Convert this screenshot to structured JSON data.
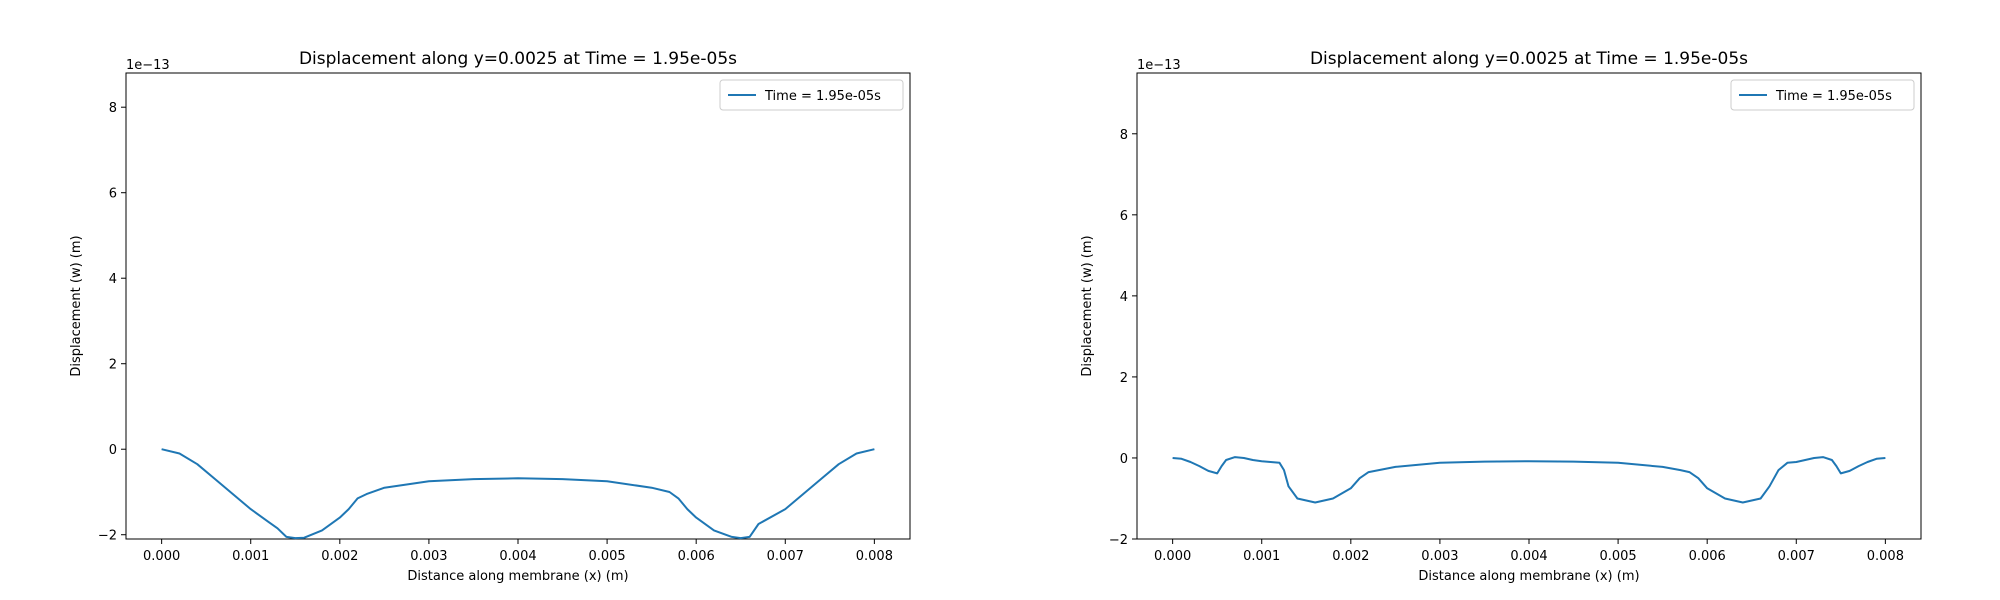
{
  "chart_data": [
    {
      "type": "line",
      "title": "Displacement along y=0.0025 at Time = 1.95e-05s",
      "xlabel": "Distance along membrane (x) (m)",
      "ylabel": "Displacement (w) (m)",
      "y_offset_label": "1e−13",
      "xlim": [
        -0.0004,
        0.0084
      ],
      "ylim": [
        -2.1,
        8.8
      ],
      "xticks": [
        0.0,
        0.001,
        0.002,
        0.003,
        0.004,
        0.005,
        0.006,
        0.007,
        0.008
      ],
      "xtick_labels": [
        "0.000",
        "0.001",
        "0.002",
        "0.003",
        "0.004",
        "0.005",
        "0.006",
        "0.007",
        "0.008"
      ],
      "yticks": [
        -2,
        0,
        2,
        4,
        6,
        8
      ],
      "ytick_labels": [
        "−2",
        "0",
        "2",
        "4",
        "6",
        "8"
      ],
      "legend_position": "top-right",
      "grid": false,
      "series": [
        {
          "name": "Time = 1.95e-05s",
          "color": "#1f77b4",
          "x": [
            0.0,
            0.0002,
            0.0004,
            0.0006,
            0.0008,
            0.001,
            0.0012,
            0.0013,
            0.0014,
            0.0015,
            0.0016,
            0.0018,
            0.002,
            0.0021,
            0.0022,
            0.0023,
            0.0025,
            0.003,
            0.0035,
            0.004,
            0.0045,
            0.005,
            0.0055,
            0.0057,
            0.0058,
            0.0059,
            0.006,
            0.0062,
            0.0064,
            0.0065,
            0.0066,
            0.0067,
            0.007,
            0.0072,
            0.0074,
            0.0076,
            0.0078,
            0.008
          ],
          "values": [
            0.0,
            -0.1,
            -0.35,
            -0.7,
            -1.05,
            -1.4,
            -1.7,
            -1.85,
            -2.05,
            -2.08,
            -2.07,
            -1.9,
            -1.6,
            -1.4,
            -1.15,
            -1.05,
            -0.9,
            -0.75,
            -0.7,
            -0.68,
            -0.7,
            -0.75,
            -0.9,
            -1.0,
            -1.15,
            -1.4,
            -1.6,
            -1.9,
            -2.05,
            -2.08,
            -2.05,
            -1.75,
            -1.4,
            -1.05,
            -0.7,
            -0.35,
            -0.1,
            0.0
          ]
        }
      ]
    },
    {
      "type": "line",
      "title": "Displacement along y=0.0025 at Time = 1.95e-05s",
      "xlabel": "Distance along membrane (x) (m)",
      "ylabel": "Displacement (w) (m)",
      "y_offset_label": "1e−13",
      "xlim": [
        -0.0004,
        0.0084
      ],
      "ylim": [
        -2.0,
        9.5
      ],
      "xticks": [
        0.0,
        0.001,
        0.002,
        0.003,
        0.004,
        0.005,
        0.006,
        0.007,
        0.008
      ],
      "xtick_labels": [
        "0.000",
        "0.001",
        "0.002",
        "0.003",
        "0.004",
        "0.005",
        "0.006",
        "0.007",
        "0.008"
      ],
      "yticks": [
        -2,
        0,
        2,
        4,
        6,
        8
      ],
      "ytick_labels": [
        "−2",
        "0",
        "2",
        "4",
        "6",
        "8"
      ],
      "legend_position": "top-right",
      "grid": false,
      "series": [
        {
          "name": "Time = 1.95e-05s",
          "color": "#1f77b4",
          "x": [
            0.0,
            0.0001,
            0.0002,
            0.0003,
            0.0004,
            0.0005,
            0.00055,
            0.0006,
            0.0007,
            0.0008,
            0.0009,
            0.001,
            0.0011,
            0.0012,
            0.00125,
            0.0013,
            0.0014,
            0.0016,
            0.0018,
            0.002,
            0.0021,
            0.0022,
            0.0025,
            0.003,
            0.0035,
            0.004,
            0.0045,
            0.005,
            0.0055,
            0.0057,
            0.0058,
            0.0059,
            0.006,
            0.0062,
            0.0064,
            0.0066,
            0.0067,
            0.0068,
            0.0069,
            0.007,
            0.0071,
            0.0072,
            0.0073,
            0.0074,
            0.00745,
            0.0075,
            0.0076,
            0.0077,
            0.0078,
            0.0079,
            0.008
          ],
          "values": [
            0.0,
            -0.02,
            -0.1,
            -0.2,
            -0.32,
            -0.38,
            -0.2,
            -0.05,
            0.02,
            0.0,
            -0.05,
            -0.08,
            -0.1,
            -0.12,
            -0.3,
            -0.7,
            -1.0,
            -1.1,
            -1.0,
            -0.75,
            -0.5,
            -0.35,
            -0.22,
            -0.12,
            -0.09,
            -0.08,
            -0.09,
            -0.12,
            -0.22,
            -0.3,
            -0.35,
            -0.5,
            -0.75,
            -1.0,
            -1.1,
            -1.0,
            -0.7,
            -0.3,
            -0.12,
            -0.1,
            -0.05,
            0.0,
            0.02,
            -0.05,
            -0.2,
            -0.38,
            -0.32,
            -0.2,
            -0.1,
            -0.02,
            0.0
          ]
        }
      ]
    }
  ]
}
